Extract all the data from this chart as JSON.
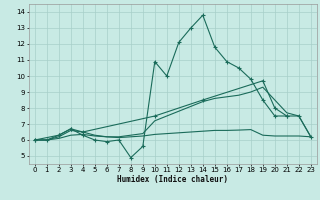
{
  "xlabel": "Humidex (Indice chaleur)",
  "xlim": [
    -0.5,
    23.5
  ],
  "ylim": [
    4.5,
    14.5
  ],
  "xticks": [
    0,
    1,
    2,
    3,
    4,
    5,
    6,
    7,
    8,
    9,
    10,
    11,
    12,
    13,
    14,
    15,
    16,
    17,
    18,
    19,
    20,
    21,
    22,
    23
  ],
  "yticks": [
    5,
    6,
    7,
    8,
    9,
    10,
    11,
    12,
    13,
    14
  ],
  "bg_color": "#c8eae4",
  "grid_color": "#a8cfc9",
  "line_color": "#1a6b5a",
  "series": [
    {
      "x": [
        0,
        1,
        2,
        3,
        4,
        5,
        6,
        7,
        8,
        9,
        10,
        11,
        12,
        13,
        14,
        15,
        16,
        17,
        18,
        19,
        20,
        21
      ],
      "y": [
        6.0,
        6.0,
        6.3,
        6.7,
        6.3,
        6.0,
        5.9,
        6.0,
        4.9,
        5.6,
        10.9,
        10.0,
        12.1,
        13.0,
        13.8,
        11.8,
        10.9,
        10.5,
        9.8,
        8.5,
        7.5,
        7.5
      ],
      "marker": true
    },
    {
      "x": [
        0,
        1,
        2,
        3,
        4,
        5,
        6,
        7,
        8,
        9,
        10,
        11,
        12,
        13,
        14,
        15,
        16,
        17,
        18,
        19,
        20,
        21,
        22,
        23
      ],
      "y": [
        6.0,
        6.0,
        6.1,
        6.3,
        6.35,
        6.25,
        6.2,
        6.15,
        6.2,
        6.25,
        6.35,
        6.4,
        6.45,
        6.5,
        6.55,
        6.6,
        6.6,
        6.62,
        6.65,
        6.3,
        6.25,
        6.25,
        6.25,
        6.2
      ],
      "marker": false
    },
    {
      "x": [
        0,
        1,
        2,
        3,
        4,
        5,
        6,
        7,
        8,
        9,
        10,
        11,
        12,
        13,
        14,
        15,
        16,
        17,
        18,
        19,
        20,
        21,
        22,
        23
      ],
      "y": [
        6.0,
        6.0,
        6.2,
        6.6,
        6.5,
        6.3,
        6.2,
        6.2,
        6.3,
        6.4,
        7.2,
        7.5,
        7.8,
        8.1,
        8.4,
        8.6,
        8.7,
        8.8,
        9.0,
        9.3,
        8.5,
        7.7,
        7.5,
        6.2
      ],
      "marker": false
    },
    {
      "x": [
        0,
        2,
        3,
        4,
        10,
        14,
        19,
        20,
        21,
        22,
        23
      ],
      "y": [
        6.0,
        6.3,
        6.7,
        6.5,
        7.5,
        8.5,
        9.7,
        8.0,
        7.5,
        7.5,
        6.2
      ],
      "marker": true
    }
  ]
}
